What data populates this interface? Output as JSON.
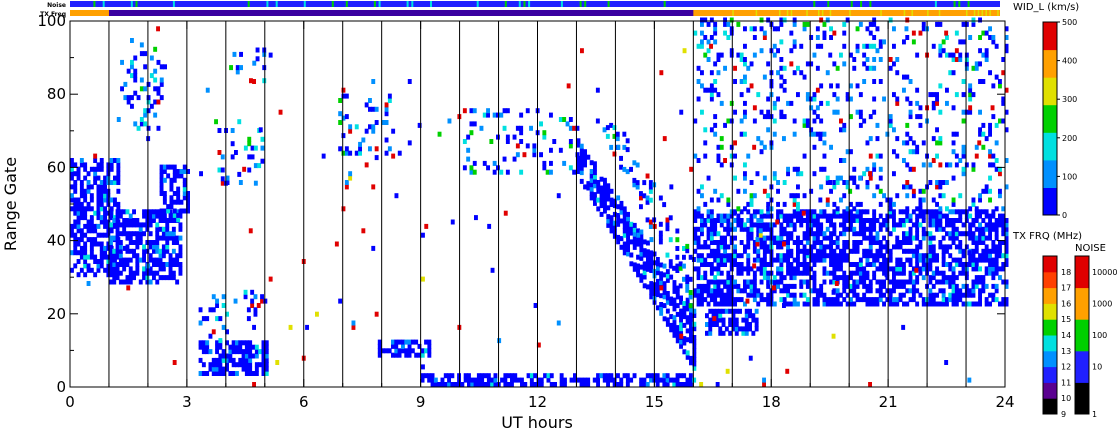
{
  "strip_labels": {
    "noise": "Noise",
    "tx_freq": "TX Freq"
  },
  "chart_data": {
    "type": "heatmap",
    "xlabel": "UT hours",
    "ylabel": "Range Gate",
    "xlim": [
      0,
      24
    ],
    "ylim": [
      0,
      100
    ],
    "xticks": [
      "0",
      "3",
      "6",
      "9",
      "12",
      "15",
      "18",
      "21",
      "24"
    ],
    "xtick_values": [
      0,
      3,
      6,
      9,
      12,
      15,
      18,
      21,
      24
    ],
    "yticks": [
      "0",
      "20",
      "40",
      "60",
      "80",
      "100"
    ],
    "ytick_values": [
      0,
      20,
      40,
      60,
      80,
      100
    ],
    "vertical_scan_lines_hours": [
      1,
      2,
      3,
      4,
      5,
      6,
      7,
      8,
      9,
      10,
      11,
      12,
      13,
      14,
      15,
      16,
      17,
      18,
      19,
      20,
      21,
      22,
      23
    ],
    "width_scale": {
      "title": "WID_L (km/s)",
      "range": [
        0,
        500
      ],
      "ticks": [
        "0",
        "100",
        "200",
        "300",
        "400",
        "500"
      ],
      "colors": [
        "#0000ff",
        "#0090ff",
        "#00e0e0",
        "#00d000",
        "#e0e000",
        "#ffa000",
        "#e00000"
      ]
    },
    "tx_freq_scale": {
      "title": "TX FRQ (MHz)",
      "ticks": [
        "9",
        "10",
        "11",
        "12",
        "13",
        "14",
        "15",
        "16",
        "17",
        "18"
      ],
      "colors": [
        "#000000",
        "#5a0090",
        "#2020ff",
        "#0090ff",
        "#00e0e0",
        "#00d000",
        "#e0e000",
        "#ffa000",
        "#ff4000",
        "#e00000"
      ]
    },
    "noise_scale": {
      "title": "NOISE",
      "ticks": [
        "1",
        "10",
        "100",
        "1000",
        "10000"
      ],
      "colors": [
        "#000000",
        "#2020ff",
        "#00d000",
        "#ffa000",
        "#e00000"
      ]
    },
    "regions": [
      {
        "t0": 0.0,
        "t1": 1.2,
        "g0": 30,
        "g1": 62,
        "kind": "dense"
      },
      {
        "t0": 1.0,
        "t1": 2.8,
        "g0": 28,
        "g1": 48,
        "kind": "dense"
      },
      {
        "t0": 2.3,
        "t1": 3.0,
        "g0": 45,
        "g1": 60,
        "kind": "dense"
      },
      {
        "t0": 1.2,
        "t1": 2.4,
        "g0": 70,
        "g1": 95,
        "kind": "sparse"
      },
      {
        "t0": 3.3,
        "t1": 5.0,
        "g0": 3,
        "g1": 12,
        "kind": "dense"
      },
      {
        "t0": 3.3,
        "t1": 4.0,
        "g0": 12,
        "g1": 24,
        "kind": "sparse"
      },
      {
        "t0": 4.2,
        "t1": 5.0,
        "g0": 18,
        "g1": 26,
        "kind": "sparse"
      },
      {
        "t0": 3.7,
        "t1": 4.9,
        "g0": 55,
        "g1": 72,
        "kind": "sparse"
      },
      {
        "t0": 4.0,
        "t1": 5.0,
        "g0": 83,
        "g1": 92,
        "kind": "sparse"
      },
      {
        "t0": 6.8,
        "t1": 8.5,
        "g0": 62,
        "g1": 80,
        "kind": "sparse"
      },
      {
        "t0": 7.9,
        "t1": 9.2,
        "g0": 8,
        "g1": 12,
        "kind": "dense"
      },
      {
        "t0": 10.0,
        "t1": 13.0,
        "g0": 58,
        "g1": 75,
        "kind": "sparse"
      },
      {
        "t0": 9.0,
        "t1": 16.0,
        "g0": 0,
        "g1": 3,
        "kind": "dense"
      },
      {
        "t0": 13.0,
        "t1": 16.0,
        "g0": 20,
        "g1": 70,
        "kind": "diag"
      },
      {
        "t0": 13.5,
        "t1": 16.0,
        "g0": 35,
        "g1": 85,
        "kind": "diag_sparse"
      },
      {
        "t0": 16.0,
        "t1": 24.0,
        "g0": 22,
        "g1": 48,
        "kind": "dense"
      },
      {
        "t0": 16.3,
        "t1": 17.6,
        "g0": 14,
        "g1": 20,
        "kind": "dense"
      },
      {
        "t0": 16.0,
        "t1": 24.0,
        "g0": 48,
        "g1": 100,
        "kind": "sparse"
      },
      {
        "t0": 0.0,
        "t1": 24.0,
        "g0": 0,
        "g1": 100,
        "kind": "noise"
      }
    ]
  }
}
